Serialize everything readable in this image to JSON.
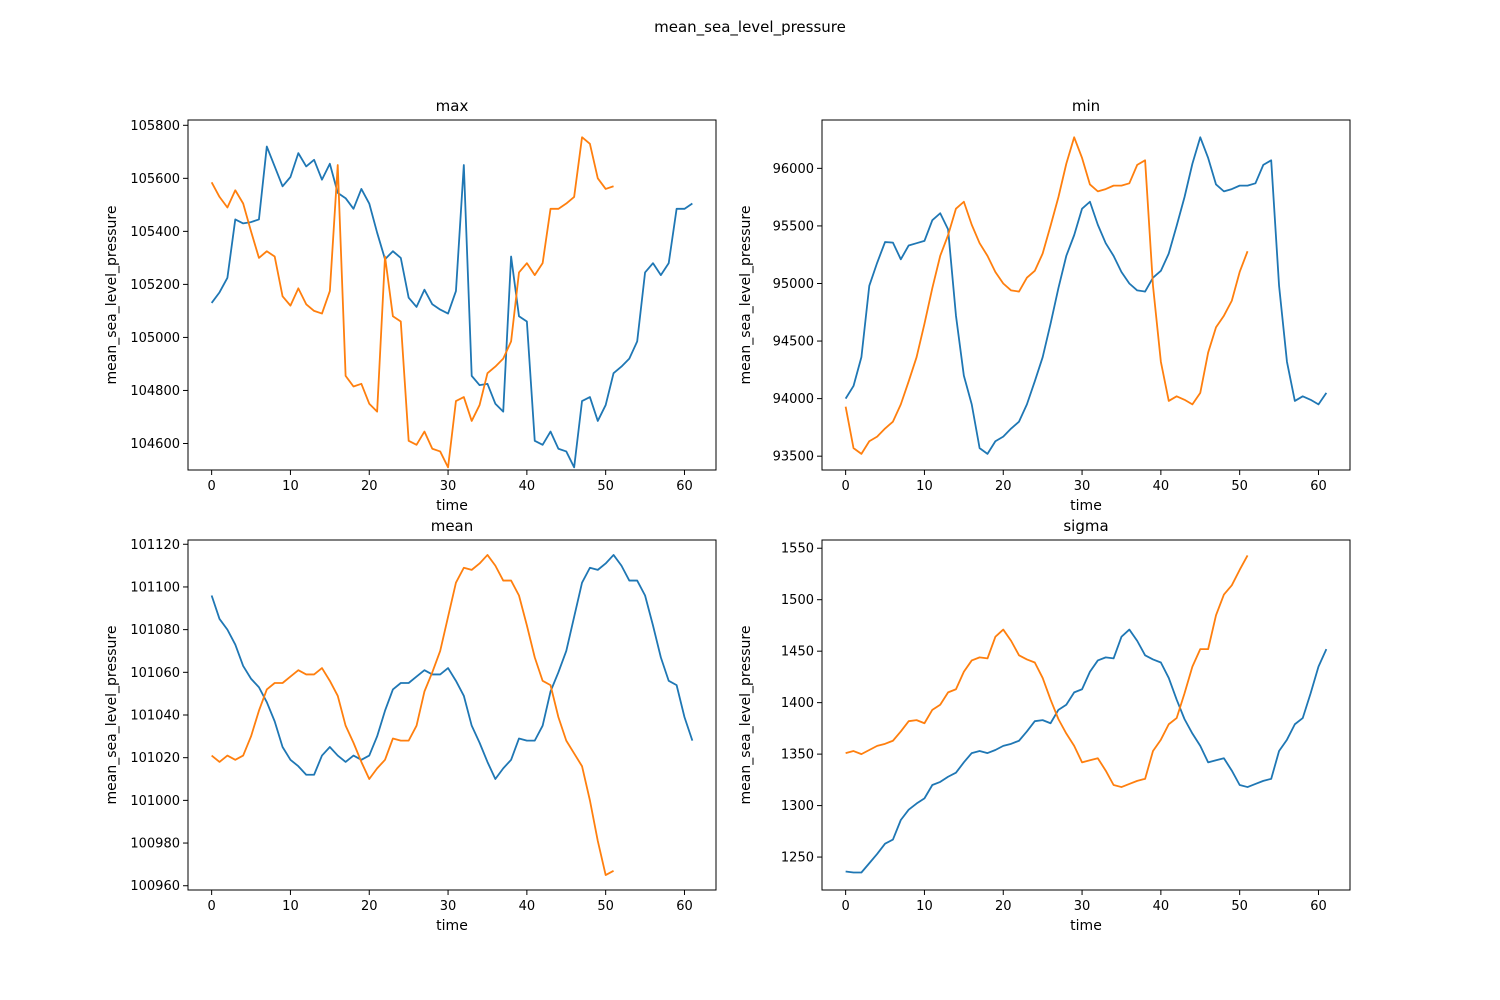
{
  "figure": {
    "suptitle": "mean_sea_level_pressure"
  },
  "colors": {
    "series_1": "#1f77b4",
    "series_2": "#ff7f0e",
    "axes": "#000000"
  },
  "chart_data": [
    {
      "id": "max",
      "type": "line",
      "title": "max",
      "xlabel": "time",
      "ylabel": "mean_sea_level_pressure",
      "xlim": [
        -3,
        64
      ],
      "ylim": [
        104500,
        105820
      ],
      "xticks": [
        0,
        10,
        20,
        30,
        40,
        50,
        60
      ],
      "yticks": [
        104600,
        104800,
        105000,
        105200,
        105400,
        105600,
        105800
      ],
      "grid": false,
      "series": [
        {
          "values": [
            105130,
            105170,
            105225,
            105445,
            105430,
            105435,
            105445,
            105720,
            105645,
            105570,
            105605,
            105695,
            105645,
            105670,
            105595,
            105655,
            105545,
            105525,
            105485,
            105560,
            105505,
            105395,
            105295,
            105325,
            105300,
            105150,
            105115,
            105180,
            105125,
            105105,
            105090,
            105175,
            105650,
            104855,
            104820,
            104825,
            104750,
            104720,
            105305,
            105080,
            105060,
            104610,
            104595,
            104645,
            104580,
            104570,
            104510,
            104760,
            104775,
            104685,
            104745,
            104865,
            104890,
            104920,
            104985,
            105245,
            105280,
            105235,
            105280,
            105485,
            105485,
            105505
          ]
        },
        {
          "values": [
            105585,
            105530,
            105490,
            105555,
            105505,
            105400,
            105300,
            105325,
            105305,
            105155,
            105120,
            105185,
            105125,
            105100,
            105090,
            105175,
            105650,
            104855,
            104815,
            104825,
            104750,
            104720,
            105305,
            105080,
            105060,
            104610,
            104595,
            104645,
            104580,
            104570,
            104510,
            104760,
            104775,
            104685,
            104745,
            104865,
            104890,
            104920,
            104985,
            105245,
            105280,
            105235,
            105280,
            105485,
            105485,
            105505,
            105530,
            105755,
            105730,
            105600,
            105560,
            105570
          ]
        }
      ]
    },
    {
      "id": "min",
      "type": "line",
      "title": "min",
      "xlabel": "time",
      "ylabel": "mean_sea_level_pressure",
      "xlim": [
        -3,
        64
      ],
      "ylim": [
        93380,
        96420
      ],
      "xticks": [
        0,
        10,
        20,
        30,
        40,
        50,
        60
      ],
      "yticks": [
        93500,
        94000,
        94500,
        95000,
        95500,
        96000
      ],
      "grid": false,
      "series": [
        {
          "values": [
            94000,
            94110,
            94360,
            94980,
            95180,
            95360,
            95355,
            95210,
            95330,
            95350,
            95370,
            95550,
            95610,
            95470,
            94720,
            94200,
            93950,
            93570,
            93520,
            93630,
            93670,
            93740,
            93800,
            93950,
            94150,
            94360,
            94650,
            94960,
            95240,
            95420,
            95650,
            95710,
            95510,
            95350,
            95240,
            95100,
            95000,
            94940,
            94930,
            95050,
            95110,
            95260,
            95500,
            95750,
            96040,
            96270,
            96090,
            95860,
            95800,
            95820,
            95850,
            95850,
            95870,
            96030,
            96070,
            94980,
            94320,
            93980,
            94020,
            93990,
            93950,
            94050
          ]
        },
        {
          "values": [
            93930,
            93570,
            93520,
            93630,
            93670,
            93740,
            93800,
            93950,
            94150,
            94360,
            94650,
            94960,
            95240,
            95420,
            95650,
            95710,
            95510,
            95350,
            95240,
            95100,
            95000,
            94940,
            94930,
            95050,
            95110,
            95260,
            95500,
            95750,
            96040,
            96270,
            96090,
            95860,
            95800,
            95820,
            95850,
            95850,
            95870,
            96030,
            96070,
            94980,
            94320,
            93980,
            94020,
            93990,
            93950,
            94050,
            94400,
            94620,
            94720,
            94850,
            95100,
            95280
          ]
        }
      ]
    },
    {
      "id": "mean",
      "type": "line",
      "title": "mean",
      "xlabel": "time",
      "ylabel": "mean_sea_level_pressure",
      "xlim": [
        -3,
        64
      ],
      "ylim": [
        100958,
        101122
      ],
      "xticks": [
        0,
        10,
        20,
        30,
        40,
        50,
        60
      ],
      "yticks": [
        100960,
        100980,
        101000,
        101020,
        101040,
        101060,
        101080,
        101100,
        101120
      ],
      "grid": false,
      "series": [
        {
          "values": [
            101096,
            101085,
            101080,
            101073,
            101063,
            101057,
            101053,
            101046,
            101037,
            101025,
            101019,
            101016,
            101012,
            101012,
            101021,
            101025,
            101021,
            101018,
            101021,
            101019,
            101021,
            101030,
            101042,
            101052,
            101055,
            101055,
            101058,
            101061,
            101059,
            101059,
            101062,
            101056,
            101049,
            101035,
            101027,
            101018,
            101010,
            101015,
            101019,
            101029,
            101028,
            101028,
            101035,
            101051,
            101060,
            101070,
            101086,
            101102,
            101109,
            101108,
            101111,
            101115,
            101110,
            101103,
            101103,
            101096,
            101082,
            101067,
            101056,
            101054,
            101039,
            101028
          ]
        },
        {
          "values": [
            101021,
            101018,
            101021,
            101019,
            101021,
            101030,
            101042,
            101052,
            101055,
            101055,
            101058,
            101061,
            101059,
            101059,
            101062,
            101056,
            101049,
            101035,
            101027,
            101018,
            101010,
            101015,
            101019,
            101029,
            101028,
            101028,
            101035,
            101051,
            101060,
            101070,
            101086,
            101102,
            101109,
            101108,
            101111,
            101115,
            101110,
            101103,
            101103,
            101096,
            101082,
            101067,
            101056,
            101054,
            101039,
            101028,
            101022,
            101016,
            101000,
            100981,
            100965,
            100967
          ]
        }
      ]
    },
    {
      "id": "sigma",
      "type": "line",
      "title": "sigma",
      "xlabel": "time",
      "ylabel": "mean_sea_level_pressure",
      "xlim": [
        -3,
        64
      ],
      "ylim": [
        1218,
        1558
      ],
      "xticks": [
        0,
        10,
        20,
        30,
        40,
        50,
        60
      ],
      "yticks": [
        1250,
        1300,
        1350,
        1400,
        1450,
        1500,
        1550
      ],
      "grid": false,
      "series": [
        {
          "values": [
            1236,
            1235,
            1235,
            1244,
            1253,
            1263,
            1267,
            1286,
            1296,
            1302,
            1307,
            1320,
            1323,
            1328,
            1332,
            1342,
            1351,
            1353,
            1351,
            1354,
            1358,
            1360,
            1363,
            1372,
            1382,
            1383,
            1380,
            1393,
            1398,
            1410,
            1413,
            1430,
            1441,
            1444,
            1443,
            1464,
            1471,
            1460,
            1446,
            1442,
            1439,
            1424,
            1403,
            1384,
            1370,
            1358,
            1342,
            1344,
            1346,
            1334,
            1320,
            1318,
            1321,
            1324,
            1326,
            1353,
            1364,
            1379,
            1385,
            1409,
            1435,
            1452
          ]
        },
        {
          "values": [
            1351,
            1353,
            1350,
            1354,
            1358,
            1360,
            1363,
            1372,
            1382,
            1383,
            1380,
            1393,
            1398,
            1410,
            1413,
            1430,
            1441,
            1444,
            1443,
            1464,
            1471,
            1460,
            1446,
            1442,
            1439,
            1424,
            1403,
            1384,
            1370,
            1358,
            1342,
            1344,
            1346,
            1334,
            1320,
            1318,
            1321,
            1324,
            1326,
            1353,
            1364,
            1379,
            1385,
            1409,
            1435,
            1452,
            1452,
            1485,
            1505,
            1514,
            1529,
            1543
          ]
        }
      ]
    }
  ]
}
